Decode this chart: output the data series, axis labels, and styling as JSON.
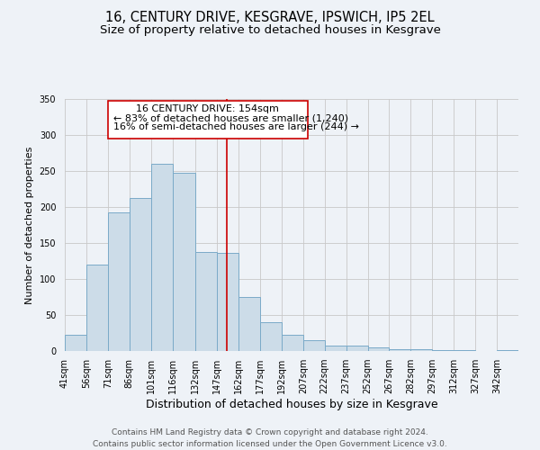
{
  "title": "16, CENTURY DRIVE, KESGRAVE, IPSWICH, IP5 2EL",
  "subtitle": "Size of property relative to detached houses in Kesgrave",
  "xlabel": "Distribution of detached houses by size in Kesgrave",
  "ylabel": "Number of detached properties",
  "bar_labels": [
    "41sqm",
    "56sqm",
    "71sqm",
    "86sqm",
    "101sqm",
    "116sqm",
    "132sqm",
    "147sqm",
    "162sqm",
    "177sqm",
    "192sqm",
    "207sqm",
    "222sqm",
    "237sqm",
    "252sqm",
    "267sqm",
    "282sqm",
    "297sqm",
    "312sqm",
    "327sqm",
    "342sqm"
  ],
  "bar_values": [
    22,
    120,
    193,
    213,
    260,
    247,
    137,
    136,
    75,
    40,
    22,
    15,
    7,
    7,
    5,
    3,
    2,
    1,
    1,
    0,
    1
  ],
  "bar_color": "#ccdce8",
  "bar_edge_color": "#7aaac8",
  "bin_edges": [
    41,
    56,
    71,
    86,
    101,
    116,
    132,
    147,
    162,
    177,
    192,
    207,
    222,
    237,
    252,
    267,
    282,
    297,
    312,
    327,
    342,
    357
  ],
  "vline_x": 154,
  "vline_color": "#cc0000",
  "annotation_title": "16 CENTURY DRIVE: 154sqm",
  "annotation_line2": "← 83% of detached houses are smaller (1,240)",
  "annotation_line3": "16% of semi-detached houses are larger (244) →",
  "annotation_box_color": "#ffffff",
  "annotation_box_edge": "#cc0000",
  "ylim": [
    0,
    350
  ],
  "yticks": [
    0,
    50,
    100,
    150,
    200,
    250,
    300,
    350
  ],
  "footer1": "Contains HM Land Registry data © Crown copyright and database right 2024.",
  "footer2": "Contains public sector information licensed under the Open Government Licence v3.0.",
  "background_color": "#eef2f7",
  "plot_background": "#eef2f7",
  "grid_color": "#c8c8c8",
  "title_fontsize": 10.5,
  "subtitle_fontsize": 9.5,
  "xlabel_fontsize": 9,
  "ylabel_fontsize": 8,
  "tick_fontsize": 7,
  "footer_fontsize": 6.5,
  "annotation_fontsize": 8
}
